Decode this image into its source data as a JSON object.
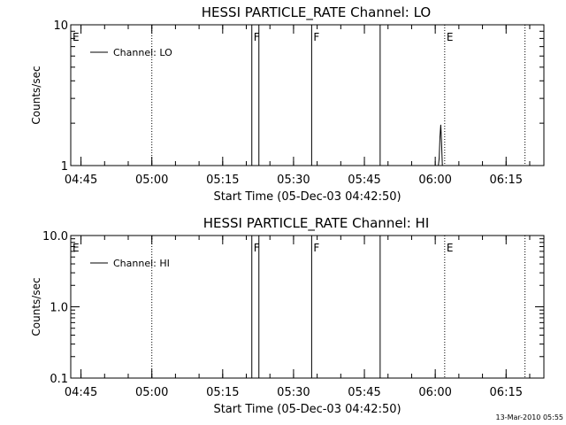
{
  "chart_data": [
    {
      "type": "line",
      "title": "HESSI PARTICLE_RATE Channel: LO",
      "xlabel": "Start Time (05-Dec-03 04:42:50)",
      "ylabel": "Counts/sec",
      "yscale": "log",
      "ylim": [
        1,
        10
      ],
      "xlim": [
        "04:42:50",
        "06:23:00"
      ],
      "x_ticks": [
        "04:45",
        "05:00",
        "05:15",
        "05:30",
        "05:45",
        "06:00",
        "06:15"
      ],
      "y_ticks": [
        "1",
        "10"
      ],
      "legend": {
        "placement": "top-left",
        "entries": [
          "Channel: LO"
        ]
      },
      "series": [
        {
          "name": "Channel: LO",
          "points": [
            [
              "05:58:50",
              1.0
            ],
            [
              "06:00:40",
              1.0
            ],
            [
              "06:00:50",
              1.13
            ],
            [
              "06:01:00",
              1.6
            ],
            [
              "06:01:10",
              1.95
            ],
            [
              "06:01:20",
              1.45
            ],
            [
              "06:01:30",
              1.0
            ],
            [
              "06:02:00",
              1.0
            ]
          ]
        }
      ],
      "markers": [
        {
          "label": "E",
          "time": "04:42:50",
          "style": "dotted"
        },
        {
          "label": "",
          "time": "05:00:00",
          "style": "dotted"
        },
        {
          "label": "F",
          "time": "05:21:10",
          "style": "solid"
        },
        {
          "label": "",
          "time": "05:22:40",
          "style": "solid"
        },
        {
          "label": "F",
          "time": "05:33:50",
          "style": "solid"
        },
        {
          "label": "",
          "time": "05:48:20",
          "style": "solid"
        },
        {
          "label": "E",
          "time": "06:02:00",
          "style": "dotted"
        },
        {
          "label": "",
          "time": "06:19:00",
          "style": "dotted"
        }
      ]
    },
    {
      "type": "line",
      "title": "HESSI PARTICLE_RATE Channel: HI",
      "xlabel": "Start Time (05-Dec-03 04:42:50)",
      "ylabel": "Counts/sec",
      "yscale": "log",
      "ylim": [
        0.1,
        10
      ],
      "xlim": [
        "04:42:50",
        "06:23:00"
      ],
      "x_ticks": [
        "04:45",
        "05:00",
        "05:15",
        "05:30",
        "05:45",
        "06:00",
        "06:15"
      ],
      "y_ticks": [
        "0.1",
        "1.0",
        "10.0"
      ],
      "legend": {
        "placement": "top-left",
        "entries": [
          "Channel: HI"
        ]
      },
      "series": [
        {
          "name": "Channel: HI",
          "points": []
        }
      ],
      "markers": [
        {
          "label": "E",
          "time": "04:42:50",
          "style": "dotted"
        },
        {
          "label": "",
          "time": "05:00:00",
          "style": "dotted"
        },
        {
          "label": "F",
          "time": "05:21:10",
          "style": "solid"
        },
        {
          "label": "",
          "time": "05:22:40",
          "style": "solid"
        },
        {
          "label": "F",
          "time": "05:33:50",
          "style": "solid"
        },
        {
          "label": "",
          "time": "05:48:20",
          "style": "solid"
        },
        {
          "label": "E",
          "time": "06:02:00",
          "style": "dotted"
        },
        {
          "label": "",
          "time": "06:19:00",
          "style": "dotted"
        }
      ]
    }
  ],
  "footer": {
    "timestamp": "13-Mar-2010 05:55"
  }
}
